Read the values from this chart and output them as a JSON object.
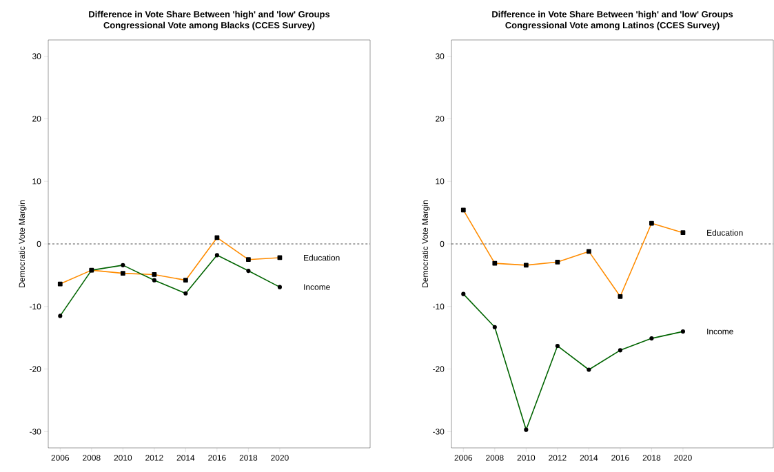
{
  "chart_data": [
    {
      "type": "line",
      "title": "Difference in Vote Share Between 'high' and 'low' Groups",
      "subtitle": "Congressional Vote among Blacks (CCES Survey)",
      "ylabel": "Democratic Vote Margin",
      "x": [
        2006,
        2008,
        2010,
        2012,
        2014,
        2016,
        2018,
        2020
      ],
      "xlim": [
        2005.24,
        2025.76
      ],
      "ylim": [
        -32.6,
        32.6
      ],
      "xticks": [
        2006,
        2008,
        2010,
        2012,
        2014,
        2016,
        2018,
        2020
      ],
      "yticks": [
        -30,
        -20,
        -10,
        0,
        10,
        20,
        30
      ],
      "grid": false,
      "legend": false,
      "ref_lines": [
        {
          "axis": "y",
          "value": 0,
          "line_style": "dashed",
          "color": "#000000"
        }
      ],
      "series": [
        {
          "name": "Education",
          "color": "#ff8c00",
          "marker": "square",
          "values": [
            -6.4,
            -4.2,
            -4.7,
            -4.9,
            -5.8,
            1.0,
            -2.5,
            -2.2
          ]
        },
        {
          "name": "Income",
          "color": "#006400",
          "marker": "circle",
          "values": [
            -11.5,
            -4.2,
            -3.4,
            -5.8,
            -7.9,
            -1.8,
            -4.3,
            -6.9
          ]
        }
      ]
    },
    {
      "type": "line",
      "title": "Difference in Vote Share Between 'high' and 'low' Groups",
      "subtitle": "Congressional Vote among Latinos (CCES Survey)",
      "ylabel": "Democratic Vote Margin",
      "x": [
        2006,
        2008,
        2010,
        2012,
        2014,
        2016,
        2018,
        2020
      ],
      "xlim": [
        2005.24,
        2025.76
      ],
      "ylim": [
        -32.6,
        32.6
      ],
      "xticks": [
        2006,
        2008,
        2010,
        2012,
        2014,
        2016,
        2018,
        2020
      ],
      "yticks": [
        -30,
        -20,
        -10,
        0,
        10,
        20,
        30
      ],
      "grid": false,
      "legend": false,
      "ref_lines": [
        {
          "axis": "y",
          "value": 0,
          "line_style": "dashed",
          "color": "#000000"
        }
      ],
      "series": [
        {
          "name": "Education",
          "color": "#ff8c00",
          "marker": "square",
          "values": [
            5.4,
            -3.1,
            -3.4,
            -2.9,
            -1.2,
            -8.4,
            3.3,
            1.8
          ]
        },
        {
          "name": "Income",
          "color": "#006400",
          "marker": "circle",
          "values": [
            -8.0,
            -13.3,
            -29.7,
            -16.3,
            -20.1,
            -17.0,
            -15.1,
            -14.0
          ]
        }
      ]
    }
  ]
}
